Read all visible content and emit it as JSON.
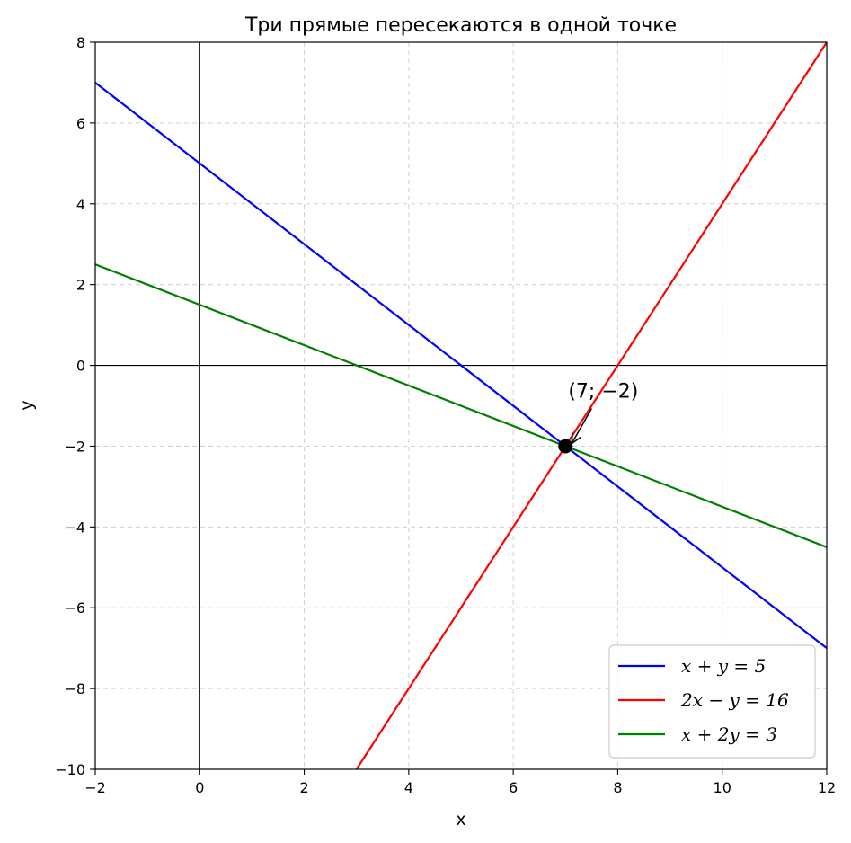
{
  "chart_data": {
    "type": "line",
    "title": "Три прямые пересекаются в одной точке",
    "xlabel": "x",
    "ylabel": "y",
    "xlim": [
      -2,
      12
    ],
    "ylim": [
      -10,
      8
    ],
    "xticks": [
      -2,
      0,
      2,
      4,
      6,
      8,
      10,
      12
    ],
    "yticks": [
      -10,
      -8,
      -6,
      -4,
      -2,
      0,
      2,
      4,
      6,
      8
    ],
    "xtick_labels": [
      "−2",
      "0",
      "2",
      "4",
      "6",
      "8",
      "10",
      "12"
    ],
    "ytick_labels": [
      "−10",
      "−8",
      "−6",
      "−4",
      "−2",
      "0",
      "2",
      "4",
      "6",
      "8"
    ],
    "grid": true,
    "legend_position": "bottom-right",
    "series": [
      {
        "name": "x + y = 5",
        "color": "#0000ff",
        "x": [
          -2,
          12
        ],
        "y": [
          7,
          -7
        ]
      },
      {
        "name": "2x − y = 16",
        "color": "#ff0000",
        "x": [
          3,
          12
        ],
        "y": [
          -10,
          8
        ]
      },
      {
        "name": "x + 2y = 3",
        "color": "#008000",
        "x": [
          -2,
          12
        ],
        "y": [
          2.5,
          -4.5
        ]
      }
    ],
    "point": {
      "x": 7,
      "y": -2,
      "color": "#000000"
    },
    "annotation": {
      "text": "(7; −2)",
      "x": 7,
      "y": -2,
      "text_x": 7.5,
      "text_y": -0.8
    }
  }
}
